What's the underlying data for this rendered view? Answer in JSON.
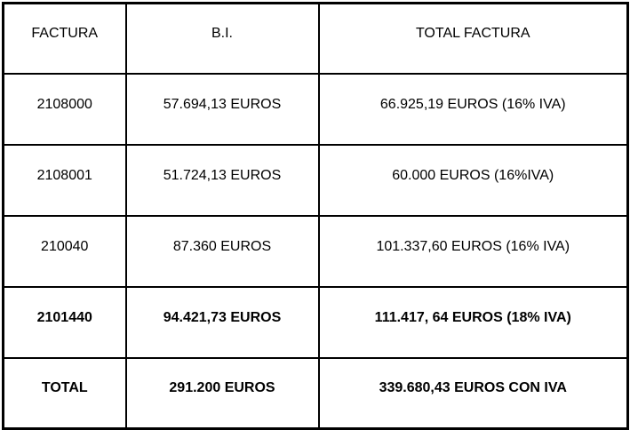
{
  "table": {
    "headers": [
      "FACTURA",
      "B.I.",
      "TOTAL FACTURA"
    ],
    "rows": [
      {
        "factura": "2108000",
        "bi": "57.694,13 EUROS",
        "total": "66.925,19 EUROS (16% IVA)",
        "bold": false
      },
      {
        "factura": "2108001",
        "bi": "51.724,13 EUROS",
        "total": "60.000 EUROS (16%IVA)",
        "bold": false
      },
      {
        "factura": "210040",
        "bi": "87.360 EUROS",
        "total": "101.337,60 EUROS (16% IVA)",
        "bold": false
      },
      {
        "factura": "2101440",
        "bi": "94.421,73 EUROS",
        "total": "111.417, 64 EUROS (18% IVA)",
        "bold": true
      },
      {
        "factura": "TOTAL",
        "bi": "291.200 EUROS",
        "total": "339.680,43 EUROS CON IVA",
        "bold": true
      }
    ],
    "colors": {
      "border": "#000000",
      "background": "#ffffff",
      "text": "#000000"
    }
  }
}
